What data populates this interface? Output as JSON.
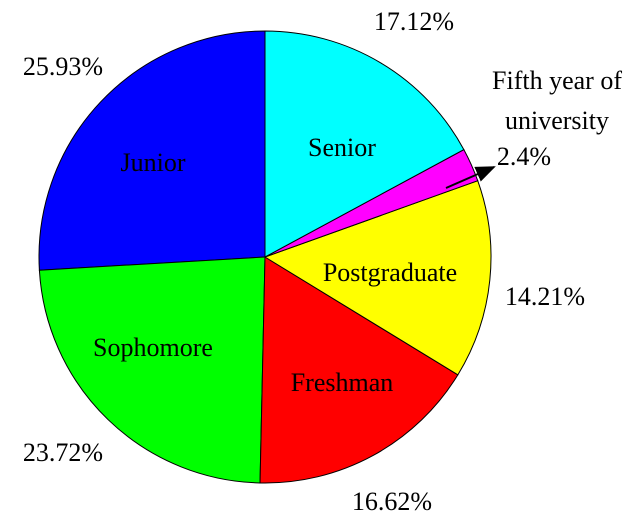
{
  "chart_data": {
    "type": "pie",
    "categories": [
      "Senior",
      "Fifth year of university",
      "Postgraduate",
      "Freshman",
      "Sophomore",
      "Junior"
    ],
    "values": [
      17.12,
      2.4,
      14.21,
      16.62,
      23.72,
      25.93
    ],
    "value_labels": [
      "17.12%",
      "2.4%",
      "14.21%",
      "16.62%",
      "23.72%",
      "25.93%"
    ],
    "colors": [
      "#00ffff",
      "#ff00ff",
      "#ffff00",
      "#ff0000",
      "#00ff00",
      "#0000ff"
    ]
  }
}
